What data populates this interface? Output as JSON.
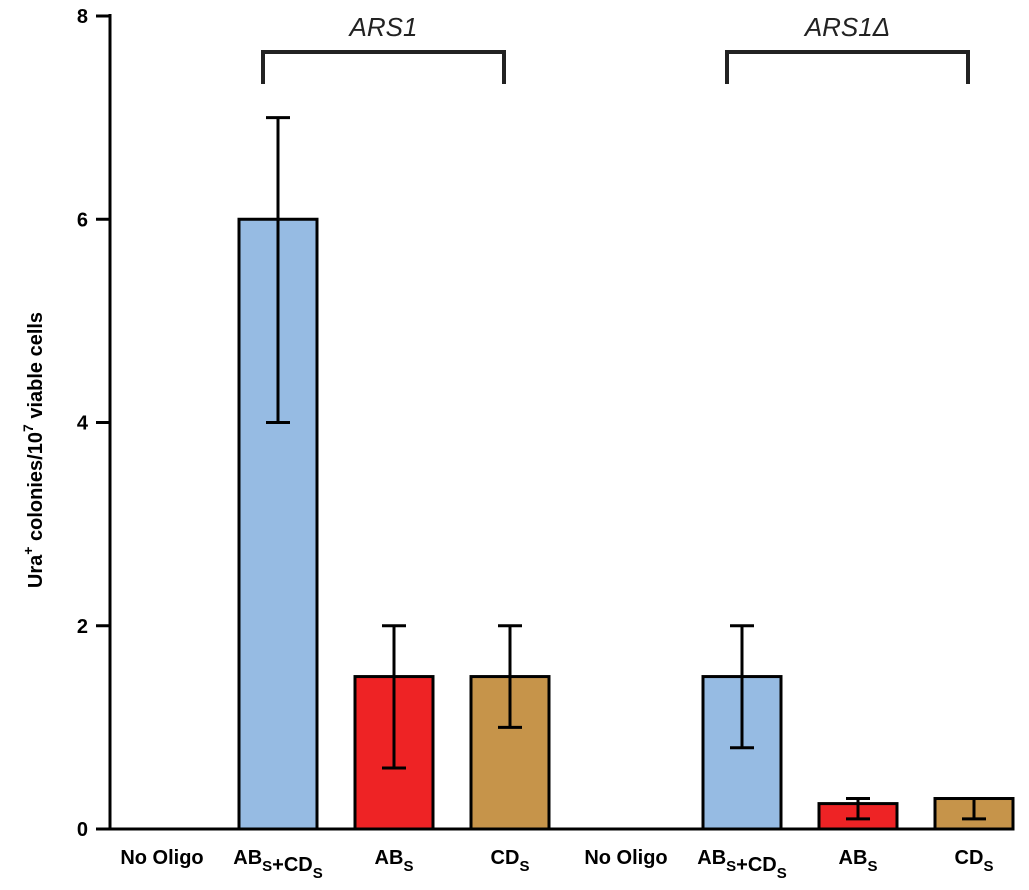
{
  "chart_data": {
    "type": "bar",
    "title": "",
    "xlabel": "",
    "ylabel": "Ura+ colonies/107 viable cells",
    "ylabel_parts": {
      "pre": "Ura",
      "sup1": "+",
      "mid": " colonies/10",
      "sup2": "7",
      "post": " viable cells"
    },
    "ylim": [
      0,
      8
    ],
    "yticks": [
      0,
      2,
      4,
      6,
      8
    ],
    "grid": false,
    "legend": "none",
    "colors": {
      "ABs+CDs": "#96bbe3",
      "ABs": "#ee2325",
      "CDs": "#c6944a",
      "none": "#ffffff"
    },
    "categories": [
      {
        "label": "No Oligo",
        "parts": [
          [
            "No Oligo",
            ""
          ]
        ],
        "key": "none",
        "value": 0,
        "err_low": 0,
        "err_high": 0
      },
      {
        "label": "ABS+CDS",
        "parts": [
          [
            "AB",
            "S"
          ],
          [
            "+CD",
            "S"
          ]
        ],
        "key": "ABs+CDs",
        "value": 6,
        "err_low": 4,
        "err_high": 7
      },
      {
        "label": "ABS",
        "parts": [
          [
            "AB",
            "S"
          ]
        ],
        "key": "ABs",
        "value": 1.5,
        "err_low": 0.6,
        "err_high": 2
      },
      {
        "label": "CDS",
        "parts": [
          [
            "CD",
            "S"
          ]
        ],
        "key": "CDs",
        "value": 1.5,
        "err_low": 1,
        "err_high": 2
      },
      {
        "label": "No Oligo",
        "parts": [
          [
            "No Oligo",
            ""
          ]
        ],
        "key": "none",
        "value": 0,
        "err_low": 0,
        "err_high": 0
      },
      {
        "label": "ABS+CDS",
        "parts": [
          [
            "AB",
            "S"
          ],
          [
            "+CD",
            "S"
          ]
        ],
        "key": "ABs+CDs",
        "value": 1.5,
        "err_low": 0.8,
        "err_high": 2
      },
      {
        "label": "ABS",
        "parts": [
          [
            "AB",
            "S"
          ]
        ],
        "key": "ABs",
        "value": 0.25,
        "err_low": 0.1,
        "err_high": 0.3
      },
      {
        "label": "CDS",
        "parts": [
          [
            "CD",
            "S"
          ]
        ],
        "key": "CDs",
        "value": 0.3,
        "err_low": 0.1,
        "err_high": 0.3
      }
    ],
    "groups": [
      {
        "label": "ARS1",
        "from": 1,
        "to": 3
      },
      {
        "label": "ARS1Δ",
        "from": 5,
        "to": 7
      }
    ]
  }
}
